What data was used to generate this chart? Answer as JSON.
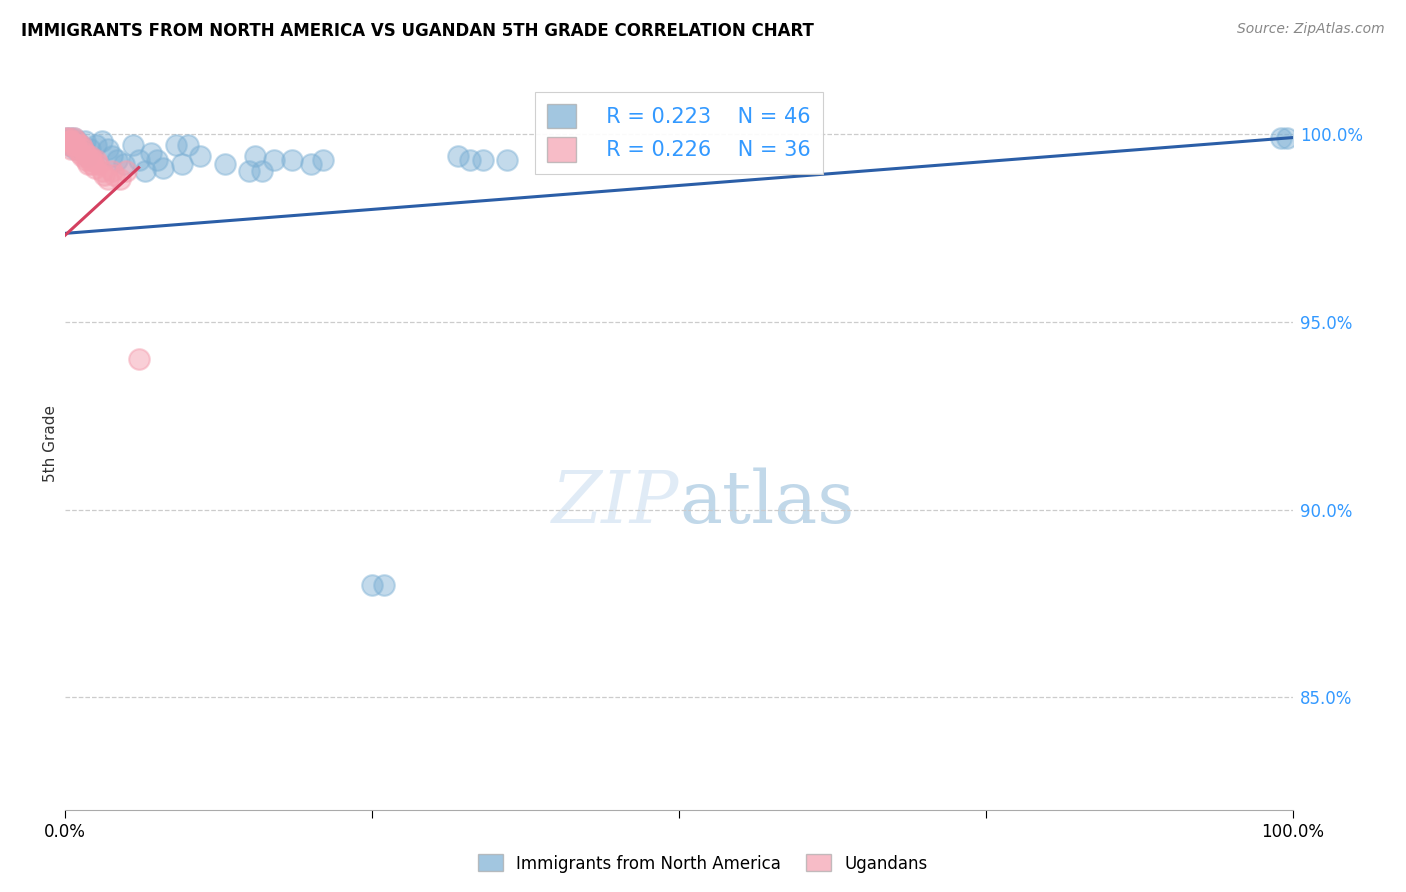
{
  "title": "IMMIGRANTS FROM NORTH AMERICA VS UGANDAN 5TH GRADE CORRELATION CHART",
  "source": "Source: ZipAtlas.com",
  "ylabel": "5th Grade",
  "yticks": [
    1.0,
    0.95,
    0.9,
    0.85
  ],
  "ytick_labels": [
    "100.0%",
    "95.0%",
    "90.0%",
    "85.0%"
  ],
  "xlim": [
    0.0,
    1.0
  ],
  "ylim": [
    0.82,
    1.015
  ],
  "legend_blue_label": "Immigrants from North America",
  "legend_pink_label": "Ugandans",
  "legend_R_blue": "R = 0.223",
  "legend_N_blue": "N = 46",
  "legend_R_pink": "R = 0.226",
  "legend_N_pink": "N = 36",
  "blue_color": "#7BAFD4",
  "pink_color": "#F4A0B0",
  "blue_line_color": "#2B5EA7",
  "pink_line_color": "#D44060",
  "blue_scatter_x": [
    0.001,
    0.002,
    0.003,
    0.004,
    0.005,
    0.006,
    0.007,
    0.008,
    0.01,
    0.012,
    0.014,
    0.016,
    0.018,
    0.02,
    0.025,
    0.03,
    0.035,
    0.038,
    0.042,
    0.048,
    0.055,
    0.06,
    0.065,
    0.07,
    0.075,
    0.08,
    0.09,
    0.095,
    0.1,
    0.11,
    0.13,
    0.15,
    0.155,
    0.16,
    0.17,
    0.185,
    0.2,
    0.21,
    0.25,
    0.26,
    0.32,
    0.33,
    0.34,
    0.36,
    0.99,
    0.995
  ],
  "blue_scatter_y": [
    0.999,
    0.998,
    0.997,
    0.999,
    0.998,
    0.997,
    0.999,
    0.996,
    0.998,
    0.997,
    0.996,
    0.998,
    0.994,
    0.996,
    0.997,
    0.998,
    0.996,
    0.994,
    0.993,
    0.992,
    0.997,
    0.993,
    0.99,
    0.995,
    0.993,
    0.991,
    0.997,
    0.992,
    0.997,
    0.994,
    0.992,
    0.99,
    0.994,
    0.99,
    0.993,
    0.993,
    0.992,
    0.993,
    0.88,
    0.88,
    0.994,
    0.993,
    0.993,
    0.993,
    0.999,
    0.999
  ],
  "pink_scatter_x": [
    0.001,
    0.002,
    0.003,
    0.003,
    0.004,
    0.005,
    0.005,
    0.006,
    0.007,
    0.008,
    0.009,
    0.01,
    0.011,
    0.012,
    0.013,
    0.014,
    0.015,
    0.016,
    0.017,
    0.018,
    0.019,
    0.02,
    0.021,
    0.022,
    0.023,
    0.024,
    0.025,
    0.027,
    0.03,
    0.032,
    0.035,
    0.038,
    0.04,
    0.045,
    0.05,
    0.06
  ],
  "pink_scatter_y": [
    0.999,
    0.998,
    0.999,
    0.997,
    0.998,
    0.998,
    0.996,
    0.997,
    0.999,
    0.997,
    0.998,
    0.996,
    0.997,
    0.995,
    0.997,
    0.994,
    0.996,
    0.995,
    0.993,
    0.994,
    0.992,
    0.994,
    0.993,
    0.992,
    0.993,
    0.991,
    0.993,
    0.992,
    0.99,
    0.989,
    0.988,
    0.99,
    0.989,
    0.988,
    0.99,
    0.94
  ],
  "blue_trend_start_x": 0.0,
  "blue_trend_end_x": 1.0,
  "blue_trend_start_y": 0.9735,
  "blue_trend_end_y": 0.999,
  "pink_trend_start_x": 0.0,
  "pink_trend_end_x": 0.06,
  "pink_trend_start_y": 0.973,
  "pink_trend_end_y": 0.991
}
